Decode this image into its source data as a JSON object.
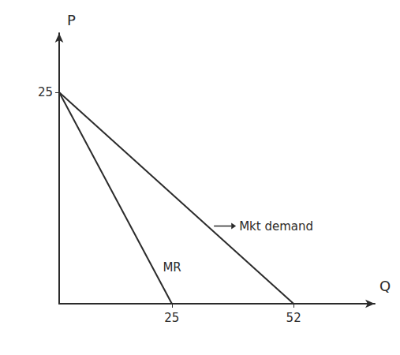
{
  "chart_data": {
    "type": "line",
    "x_label": "Q",
    "y_label": "P",
    "xlim": [
      0,
      70
    ],
    "ylim": [
      0,
      32
    ],
    "xticks": [
      25,
      52
    ],
    "yticks": [
      25
    ],
    "grid": false,
    "series": [
      {
        "name": "Mkt demand",
        "color": "#2b2b2b",
        "line_style": "solid",
        "x": [
          0,
          52
        ],
        "values": [
          25,
          0
        ]
      },
      {
        "name": "MR",
        "color": "#2b2b2b",
        "line_style": "solid",
        "x": [
          0,
          25
        ],
        "values": [
          25,
          0
        ]
      }
    ]
  }
}
